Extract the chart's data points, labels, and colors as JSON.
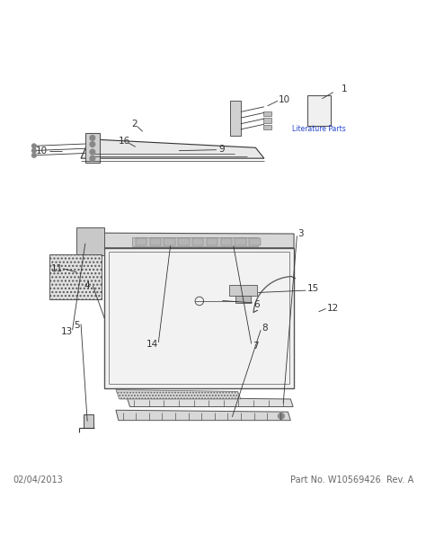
{
  "background_color": "#ffffff",
  "footer_left": "02/04/2013",
  "footer_right": "Part No. W10569426  Rev. A",
  "footer_fontsize": 7,
  "lit_parts_label": "Literature Parts",
  "label_fontsize": 7.5,
  "label_color": "#333333",
  "line_color": "#444444"
}
